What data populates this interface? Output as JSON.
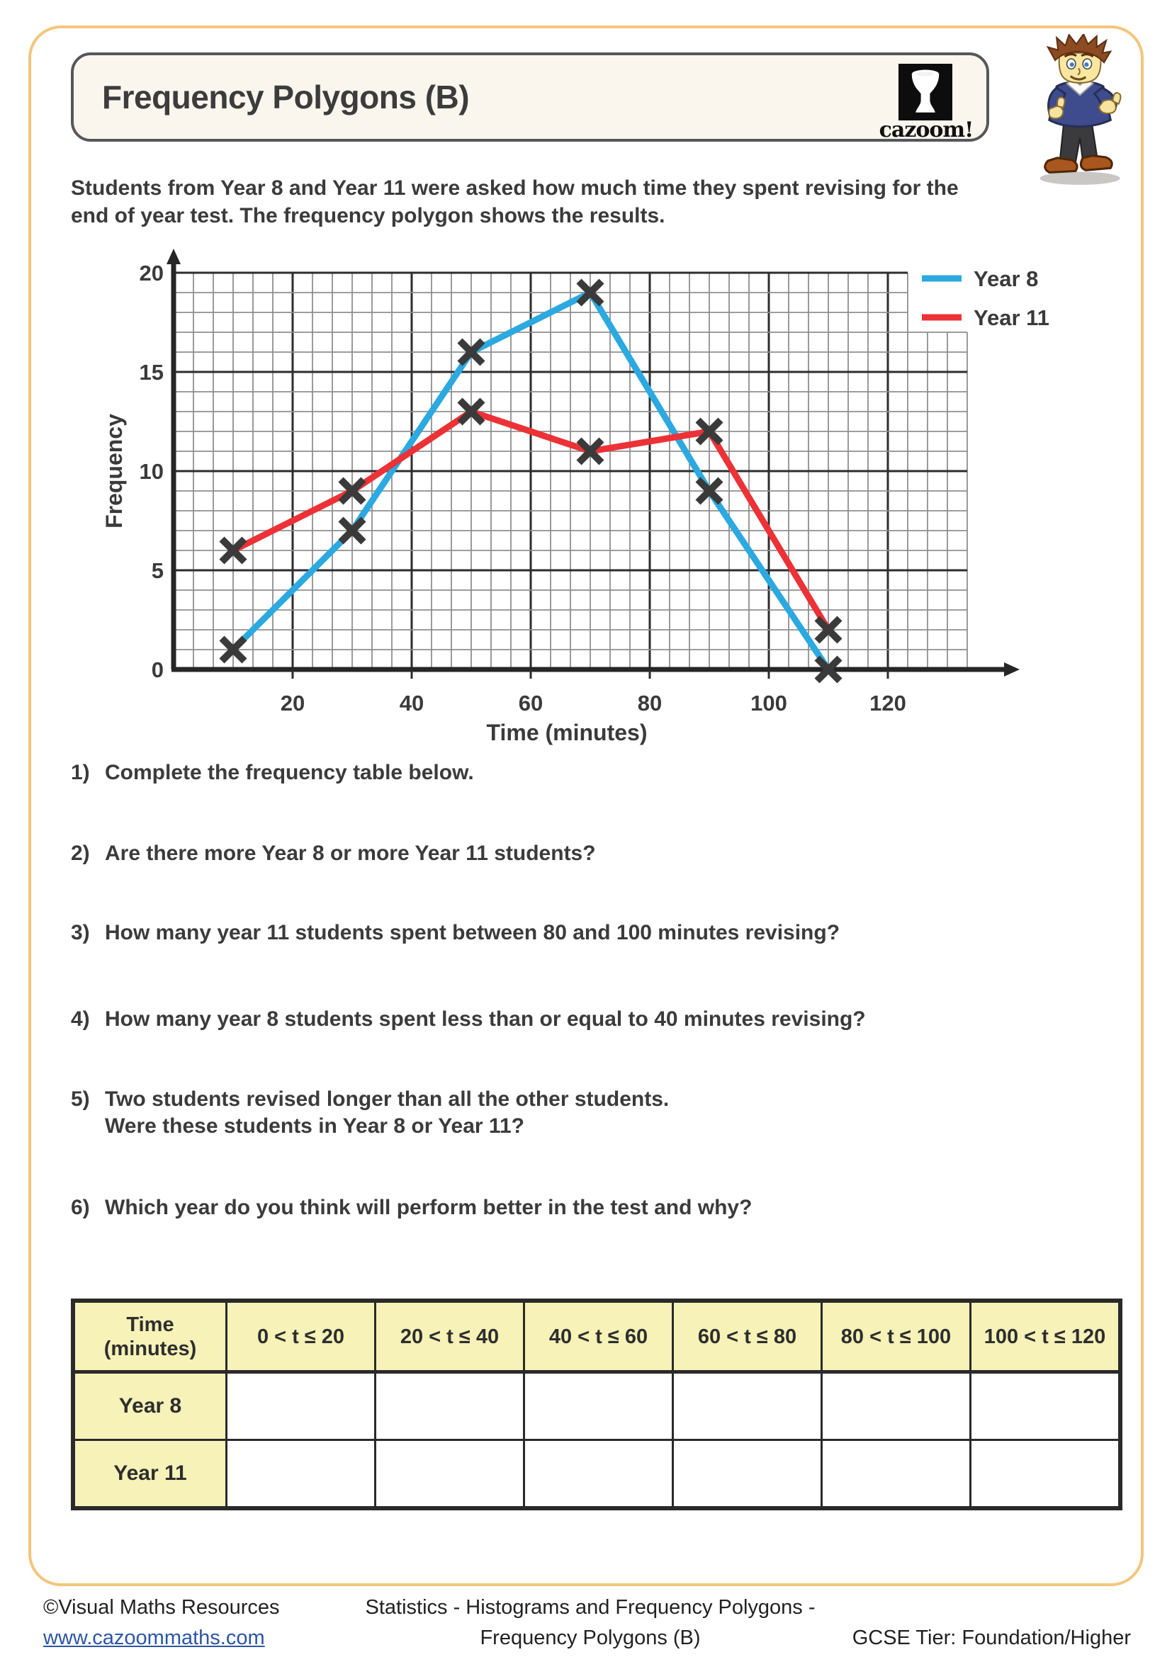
{
  "page": {
    "header": {
      "title": "Frequency Polygons (B)",
      "logo_text": "cazoom!"
    },
    "intro": "Students from Year 8 and Year 11 were asked how much time they spent revising for the\nend of year test. The frequency polygon shows the results.",
    "questions": [
      {
        "number": "1)",
        "text": "Complete the frequency table below."
      },
      {
        "number": "2)",
        "text": "Are there more Year 8 or more Year 11 students?"
      },
      {
        "number": "3)",
        "text": "How many year 11 students spent between 80 and 100 minutes revising?"
      },
      {
        "number": "4)",
        "text": "How many year 8 students spent less than or equal to 40 minutes revising?"
      },
      {
        "number": "5)",
        "text": "Two students revised longer than all the other students.\nWere these students in Year 8 or Year 11?"
      },
      {
        "number": "6)",
        "text": "Which year do you think will perform better in the test and why?"
      }
    ],
    "table": {
      "column_headers": [
        "Time\n(minutes)",
        "0 < t ≤ 20",
        "20 < t ≤ 40",
        "40 < t ≤ 60",
        "60 < t ≤ 80",
        "80 < t ≤ 100",
        "100 < t ≤ 120"
      ],
      "rows": [
        {
          "label": "Year 8",
          "cells": [
            "",
            "",
            "",
            "",
            "",
            ""
          ]
        },
        {
          "label": "Year 11",
          "cells": [
            "",
            "",
            "",
            "",
            "",
            ""
          ]
        }
      ]
    },
    "footer": {
      "copyright": "©Visual Maths Resources",
      "website": "www.cazoommaths.com",
      "center_line1": "Statistics - Histograms and Frequency Polygons -",
      "center_line2": "Frequency Polygons (B)",
      "tier": "GCSE Tier: Foundation/Higher"
    }
  },
  "chart_data": {
    "type": "line",
    "title": "",
    "xlabel": "Time (minutes)",
    "ylabel": "Frequency",
    "x": [
      10,
      30,
      50,
      70,
      90,
      110
    ],
    "series": [
      {
        "name": "Year 8",
        "color": "#2ba9e0",
        "values": [
          1,
          7,
          16,
          19,
          9,
          0
        ]
      },
      {
        "name": "Year 11",
        "color": "#ec3237",
        "values": [
          6,
          9,
          13,
          11,
          12,
          2
        ]
      }
    ],
    "xlim": [
      0,
      133
    ],
    "ylim": [
      0,
      20
    ],
    "x_ticks": [
      20,
      40,
      60,
      80,
      100,
      120
    ],
    "y_ticks": [
      0,
      5,
      10,
      15,
      20
    ],
    "grid": true,
    "marker": "x",
    "marker_color": "#3a3a3a",
    "legend_position": "top-right"
  }
}
